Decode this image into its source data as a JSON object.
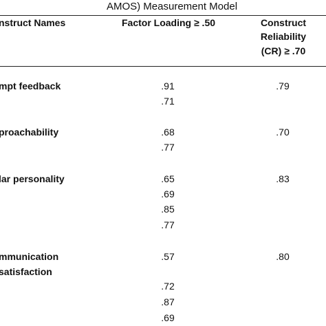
{
  "title": "AMOS) Measurement Model",
  "table": {
    "header": {
      "names": "nstruct Names",
      "loading": "Factor Loading ≥ .50",
      "reliability": [
        "Construct",
        "Reliability",
        "(CR) ≥ .70"
      ]
    },
    "rows": [
      {
        "name": [
          "mpt feedback"
        ],
        "loadings": [
          ".91",
          ".71"
        ],
        "cr": ".79"
      },
      {
        "name": [
          "proachability"
        ],
        "loadings": [
          ".68",
          ".77"
        ],
        "cr": ".70"
      },
      {
        "name": [
          "lar personality"
        ],
        "loadings": [
          ".65",
          ".69",
          ".85",
          ".77"
        ],
        "cr": ".83"
      },
      {
        "name": [
          "mmunication",
          "satisfaction"
        ],
        "loadings": [
          ".57",
          ".72",
          ".87",
          ".69"
        ],
        "cr": ".80"
      }
    ]
  }
}
